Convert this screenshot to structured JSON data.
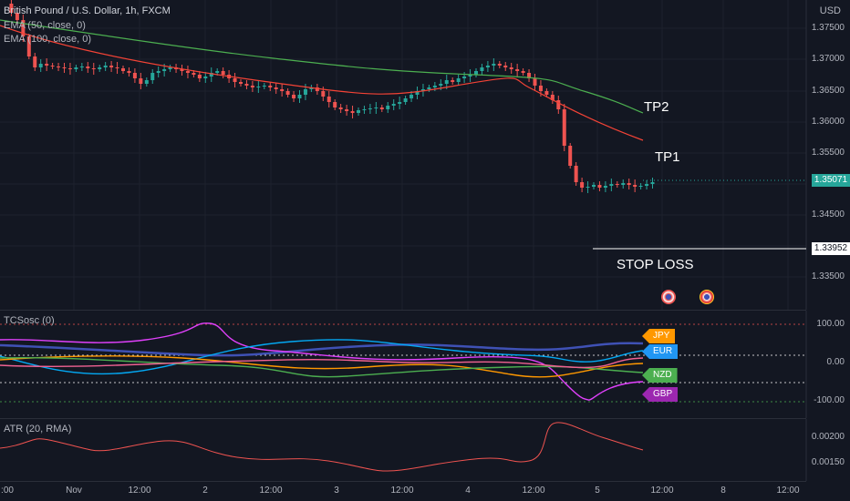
{
  "symbol": {
    "title": "British Pound / U.S. Dollar, 1h, FXCM"
  },
  "indicators": {
    "ema50": "EMA (50, close, 0)",
    "ema100": "EMA (100, close, 0)",
    "osc": "TCSosc (0)",
    "atr": "ATR (20, RMA)"
  },
  "price_axis": {
    "currency": "USD",
    "ticks": [
      "1.37500",
      "1.37000",
      "1.36500",
      "1.36000",
      "1.35500",
      "1.35000",
      "1.34500",
      "1.34000",
      "1.33500"
    ],
    "last_price": "1.35071",
    "stop_price": "1.33952"
  },
  "osc_axis": {
    "ticks": [
      "100.00",
      "0.00",
      "-100.00"
    ]
  },
  "atr_axis": {
    "ticks": [
      "0.00200",
      "0.00150"
    ]
  },
  "time_axis": {
    "ticks": [
      ":00",
      "Nov",
      "12:00",
      "2",
      "12:00",
      "3",
      "12:00",
      "4",
      "12:00",
      "5",
      "12:00",
      "8",
      "12:00"
    ]
  },
  "annotations": {
    "tp2": "TP2",
    "tp1": "TP1",
    "stop_loss": "STOP LOSS"
  },
  "currency_tags": [
    "JPY",
    "EUR",
    "NZD",
    "GBP"
  ],
  "colors": {
    "background": "#131722",
    "up": "#26a69a",
    "down": "#ef5350",
    "ema50": "#4caf50",
    "ema100": "#f44336",
    "last_price": "#26a69a"
  }
}
